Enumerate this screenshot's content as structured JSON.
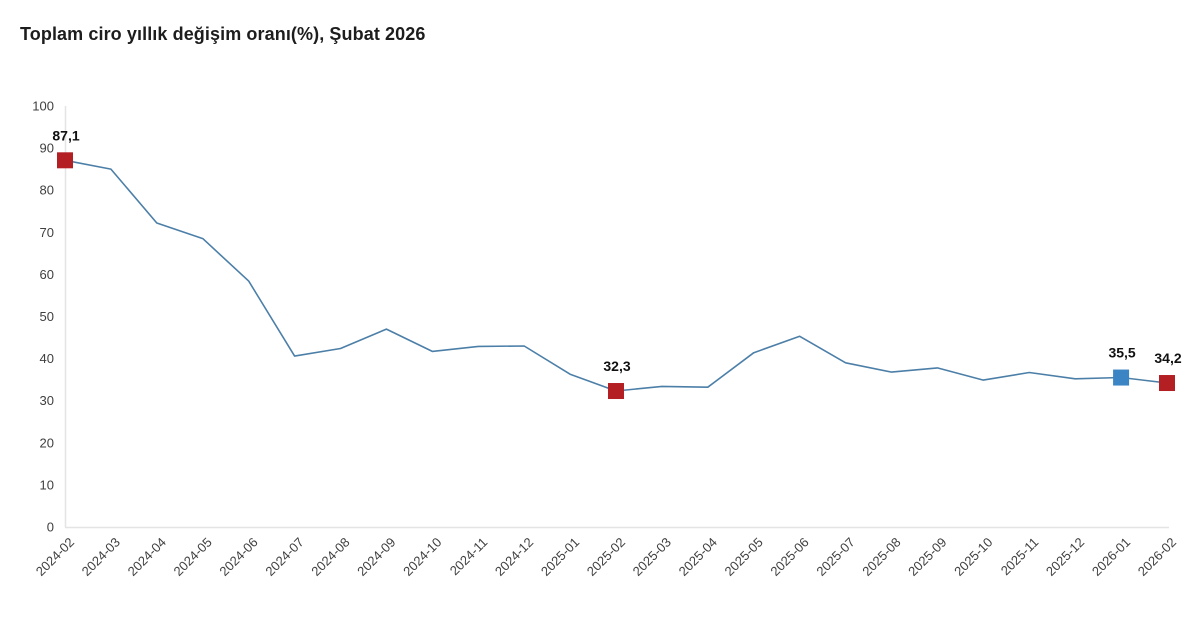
{
  "header": {
    "title": "Toplam ciro yıllık değişim oranı(%), Şubat 2026"
  },
  "chart_data": {
    "type": "line",
    "title": "Toplam ciro yıllık değişim oranı(%), Şubat 2026",
    "categories": [
      "2024-02",
      "2024-03",
      "2024-04",
      "2024-05",
      "2024-06",
      "2024-07",
      "2024-08",
      "2024-09",
      "2024-10",
      "2024-11",
      "2024-12",
      "2025-01",
      "2025-02",
      "2025-03",
      "2025-04",
      "2025-05",
      "2025-06",
      "2025-07",
      "2025-08",
      "2025-09",
      "2025-10",
      "2025-11",
      "2025-12",
      "2026-01",
      "2026-02"
    ],
    "values": [
      87.1,
      85.0,
      72.2,
      68.5,
      58.4,
      40.6,
      42.4,
      47.0,
      41.7,
      42.9,
      43.0,
      36.3,
      32.3,
      33.4,
      33.2,
      41.4,
      45.3,
      39.0,
      36.8,
      37.8,
      34.9,
      36.7,
      35.2,
      35.5,
      34.2
    ],
    "xlabel": "",
    "ylabel": "",
    "ylim": [
      0,
      100
    ],
    "ytick_step": 10,
    "yticks": [
      0,
      10,
      20,
      30,
      40,
      50,
      60,
      70,
      80,
      90,
      100
    ],
    "grid": "off",
    "legend": "none",
    "annotations": [
      {
        "category": "2024-02",
        "value": 87.1,
        "label": "87,1",
        "marker": "red"
      },
      {
        "category": "2025-02",
        "value": 32.3,
        "label": "32,3",
        "marker": "red"
      },
      {
        "category": "2026-01",
        "value": 35.5,
        "label": "35,5",
        "marker": "blue"
      },
      {
        "category": "2026-02",
        "value": 34.2,
        "label": "34,2",
        "marker": "red"
      }
    ],
    "colors": {
      "line": "#4c7fa8",
      "marker_red": "#b41f24",
      "marker_blue": "#3c85c5",
      "axis": "#e4e4e4",
      "tick_text": "#3f3f3f",
      "title_text": "#1d1d1d",
      "annotation_text": "#111111"
    }
  }
}
